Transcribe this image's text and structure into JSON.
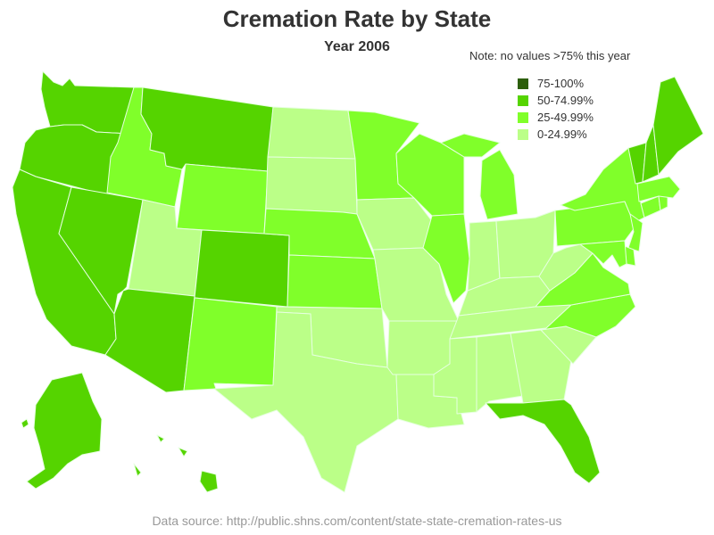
{
  "title": "Cremation Rate by State",
  "subtitle": "Year 2006",
  "note": "Note: no values >75% this year",
  "source": "Data source: http://public.shns.com/content/state-state-cremation-rates-us",
  "colors": {
    "c75": "#2d5f0b",
    "c50": "#55d400",
    "c25": "#80ff2a",
    "c0": "#bbff88"
  },
  "legend": [
    {
      "label": "75-100%",
      "bin": "c75"
    },
    {
      "label": "50-74.99%",
      "bin": "c50"
    },
    {
      "label": "25-49.99%",
      "bin": "c25"
    },
    {
      "label": "0-24.99%",
      "bin": "c0"
    }
  ],
  "states": [
    {
      "id": "WA",
      "bin": "c50"
    },
    {
      "id": "OR",
      "bin": "c50"
    },
    {
      "id": "CA",
      "bin": "c50"
    },
    {
      "id": "NV",
      "bin": "c50"
    },
    {
      "id": "AZ",
      "bin": "c50"
    },
    {
      "id": "MT",
      "bin": "c50"
    },
    {
      "id": "CO",
      "bin": "c50"
    },
    {
      "id": "FL",
      "bin": "c50"
    },
    {
      "id": "VT",
      "bin": "c50"
    },
    {
      "id": "NH",
      "bin": "c50"
    },
    {
      "id": "ME",
      "bin": "c50"
    },
    {
      "id": "AK",
      "bin": "c50"
    },
    {
      "id": "HI",
      "bin": "c50"
    },
    {
      "id": "ID",
      "bin": "c25"
    },
    {
      "id": "WY",
      "bin": "c25"
    },
    {
      "id": "NM",
      "bin": "c25"
    },
    {
      "id": "NE",
      "bin": "c25"
    },
    {
      "id": "KS",
      "bin": "c25"
    },
    {
      "id": "MN",
      "bin": "c25"
    },
    {
      "id": "WI",
      "bin": "c25"
    },
    {
      "id": "MI",
      "bin": "c25"
    },
    {
      "id": "IL",
      "bin": "c25"
    },
    {
      "id": "NY",
      "bin": "c25"
    },
    {
      "id": "PA",
      "bin": "c25"
    },
    {
      "id": "VA",
      "bin": "c25"
    },
    {
      "id": "NC",
      "bin": "c25"
    },
    {
      "id": "NJ",
      "bin": "c25"
    },
    {
      "id": "DE",
      "bin": "c25"
    },
    {
      "id": "MD",
      "bin": "c25"
    },
    {
      "id": "CT",
      "bin": "c25"
    },
    {
      "id": "RI",
      "bin": "c25"
    },
    {
      "id": "MA",
      "bin": "c25"
    },
    {
      "id": "UT",
      "bin": "c0"
    },
    {
      "id": "ND",
      "bin": "c0"
    },
    {
      "id": "SD",
      "bin": "c0"
    },
    {
      "id": "IA",
      "bin": "c0"
    },
    {
      "id": "MO",
      "bin": "c0"
    },
    {
      "id": "OK",
      "bin": "c0"
    },
    {
      "id": "TX",
      "bin": "c0"
    },
    {
      "id": "AR",
      "bin": "c0"
    },
    {
      "id": "LA",
      "bin": "c0"
    },
    {
      "id": "MS",
      "bin": "c0"
    },
    {
      "id": "AL",
      "bin": "c0"
    },
    {
      "id": "GA",
      "bin": "c0"
    },
    {
      "id": "SC",
      "bin": "c0"
    },
    {
      "id": "TN",
      "bin": "c0"
    },
    {
      "id": "KY",
      "bin": "c0"
    },
    {
      "id": "IN",
      "bin": "c0"
    },
    {
      "id": "OH",
      "bin": "c0"
    },
    {
      "id": "WV",
      "bin": "c0"
    }
  ]
}
